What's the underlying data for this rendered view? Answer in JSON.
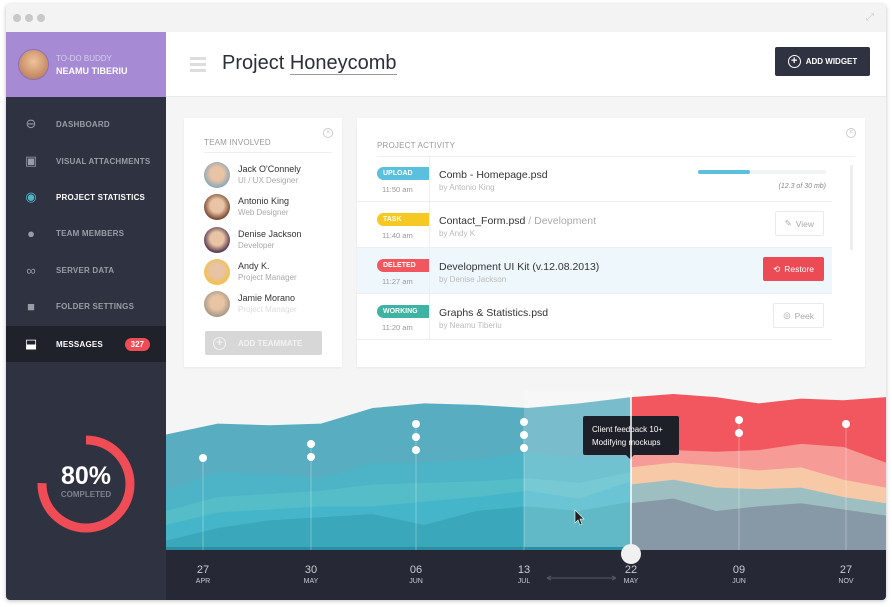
{
  "window": {
    "dots": 3
  },
  "profile": {
    "subtitle": "TO-DO BUDDY",
    "name": "NEAMU TIBERIU"
  },
  "sidebar": {
    "items": [
      {
        "label": "DASHBOARD",
        "icon": "dashboard-icon"
      },
      {
        "label": "VISUAL ATTACHMENTS",
        "icon": "image-icon"
      },
      {
        "label": "PROJECT STATISTICS",
        "icon": "eye-icon",
        "active": true
      },
      {
        "label": "TEAM MEMBERS",
        "icon": "user-icon"
      },
      {
        "label": "SERVER DATA",
        "icon": "infinity-icon"
      },
      {
        "label": "FOLDER SETTINGS",
        "icon": "folder-icon"
      },
      {
        "label": "MESSAGES",
        "icon": "inbox-icon",
        "badge": "327"
      }
    ]
  },
  "progress": {
    "percent_label": "80%",
    "percent": 80,
    "caption": "COMPLETED",
    "color": "#ef4c55"
  },
  "header": {
    "title_prefix": "Project ",
    "title_link": "Honeycomb",
    "add_widget": "ADD WIDGET"
  },
  "team": {
    "title": "TEAM INVOLVED",
    "add_label": "ADD TEAMMATE",
    "members": [
      {
        "name": "Jack O'Connely",
        "role": "UI / UX Designer"
      },
      {
        "name": "Antonio King",
        "role": "Web Designer"
      },
      {
        "name": "Denise Jackson",
        "role": "Developer"
      },
      {
        "name": "Andy K.",
        "role": "Project Manager"
      },
      {
        "name": "Jamie Morano",
        "role": "Project Manager"
      }
    ]
  },
  "activity": {
    "title": "PROJECT ACTIVITY",
    "rows": [
      {
        "tag": "UPLOAD",
        "tag_color": "#5bc0de",
        "time": "11:50 am",
        "file": "Comb - Homepage.psd",
        "sub": "",
        "by": "by Antonio King",
        "progress": 0.41,
        "progress_text": "(12.3 of 30 mb)"
      },
      {
        "tag": "TASK",
        "tag_color": "#f6c824",
        "time": "11:40 am",
        "file": "Contact_Form.psd",
        "sub": " / Development",
        "by": "by Andy K",
        "button": "View"
      },
      {
        "tag": "DELETED",
        "tag_color": "#f2575f",
        "time": "11:27 am",
        "file": "Development UI Kit (v.12.08.2013)",
        "sub": "",
        "by": "by Denise Jackson",
        "button": "Restore"
      },
      {
        "tag": "WORKING",
        "tag_color": "#3fb3a3",
        "time": "11:20 am",
        "file": "Graphs & Statistics.psd",
        "sub": "",
        "by": "by Neamu Tiberiu",
        "button": "Peek"
      }
    ]
  },
  "chart_data": {
    "type": "area",
    "timeline": [
      {
        "day": "27",
        "month": "APR",
        "events": 1
      },
      {
        "day": "30",
        "month": "MAY",
        "events": 2
      },
      {
        "day": "06",
        "month": "JUN",
        "events": 3
      },
      {
        "day": "13",
        "month": "JUL",
        "events": 3
      },
      {
        "day": "22",
        "month": "MAY",
        "events": 0
      },
      {
        "day": "09",
        "month": "JUN",
        "events": 2
      },
      {
        "day": "27",
        "month": "NOV",
        "events": 1
      }
    ],
    "tooltip": [
      "Client feedback 10+",
      "Modifying mockups"
    ],
    "past_series": [
      {
        "color": "#58adc1",
        "values": [
          74,
          81,
          80,
          81,
          91,
          94,
          93,
          91,
          94,
          98
        ]
      },
      {
        "color": "#4db3c6",
        "values": [
          38,
          50,
          49,
          46,
          56,
          56,
          58,
          63,
          59,
          59
        ]
      },
      {
        "color": "#55bdc8",
        "values": [
          25,
          34,
          36,
          38,
          42,
          43,
          44,
          46,
          43,
          50
        ]
      },
      {
        "color": "#45b6c9",
        "values": [
          16,
          24,
          26,
          28,
          28,
          31,
          34,
          38,
          33,
          44
        ]
      },
      {
        "color": "#3aa7ba",
        "values": [
          6,
          14,
          19,
          21,
          23,
          16,
          25,
          28,
          25,
          31
        ]
      }
    ],
    "future_series": [
      {
        "color": "#f2575f",
        "values": [
          98,
          100,
          98,
          94,
          97,
          96,
          98
        ]
      },
      {
        "color": "#f79b97",
        "values": [
          66,
          64,
          63,
          64,
          68,
          66,
          56
        ]
      },
      {
        "color": "#f7c9a7",
        "values": [
          53,
          56,
          54,
          51,
          53,
          45,
          40
        ]
      },
      {
        "color": "#9ebfc2",
        "values": [
          42,
          45,
          40,
          39,
          40,
          34,
          30
        ]
      },
      {
        "color": "#8798a6",
        "values": [
          30,
          33,
          25,
          28,
          30,
          26,
          22
        ]
      }
    ],
    "ylim": [
      0,
      100
    ]
  }
}
